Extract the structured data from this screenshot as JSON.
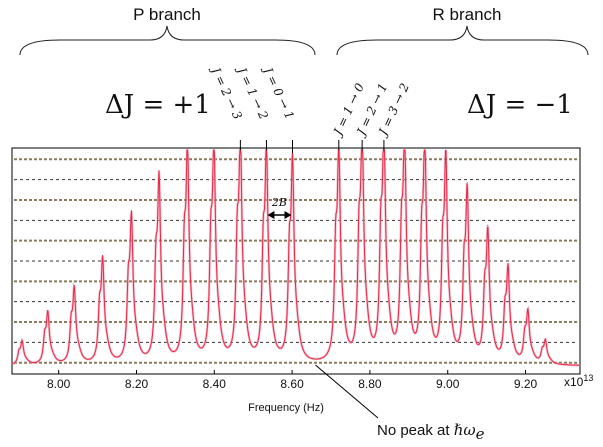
{
  "chart_data": {
    "type": "line",
    "xlabel": "Frequency (Hz)",
    "ylabel": "",
    "x_exponent_label": "x10",
    "x_exponent_power": "13",
    "xlim": [
      7.88,
      9.34
    ],
    "ylim": [
      0,
      1
    ],
    "grid": "horizontal dashed",
    "x_ticks": [
      "8.00",
      "8.20",
      "8.40",
      "8.60",
      "8.80",
      "9.00",
      "9.20"
    ],
    "x_tick_values": [
      8.0,
      8.2,
      8.4,
      8.6,
      8.8,
      9.0,
      9.2
    ],
    "gridline_levels": [
      0.05,
      0.14,
      0.23,
      0.32,
      0.41,
      0.5,
      0.59,
      0.68,
      0.77,
      0.86,
      0.95
    ],
    "series": [
      {
        "color": "#e8284a",
        "peak_x": [
          7.906,
          7.972,
          8.04,
          8.113,
          8.187,
          8.258,
          8.331,
          8.399,
          8.467,
          8.534,
          8.601,
          8.72,
          8.78,
          8.836,
          8.889,
          8.941,
          8.995,
          9.05,
          9.103,
          9.155,
          9.206,
          9.251
        ],
        "peak_y": [
          0.1,
          0.22,
          0.32,
          0.44,
          0.62,
          0.78,
          0.91,
          0.93,
          0.95,
          0.9,
          0.85,
          0.9,
          0.97,
          0.97,
          0.96,
          0.93,
          0.86,
          0.72,
          0.55,
          0.4,
          0.22,
          0.1
        ]
      }
    ],
    "annotations": {
      "p_branch": "P branch",
      "r_branch": "R branch",
      "p_delta": "ΔJ = +1",
      "r_delta": "ΔJ = −1",
      "p_transitions": [
        "J = 2 → 3",
        "J = 1 → 2",
        "J = 0 → 1"
      ],
      "p_transition_x": [
        8.467,
        8.534,
        8.601
      ],
      "r_transitions": [
        "J = 1 → 0",
        "J = 2 → 1",
        "J = 3 → 2"
      ],
      "r_transition_x": [
        8.72,
        8.78,
        8.836
      ],
      "spacing_label": "2B",
      "no_peak_prefix": "No peak at ",
      "no_peak_symbol": "ℏω",
      "no_peak_subscript": "e",
      "no_peak_x": 8.66
    }
  }
}
